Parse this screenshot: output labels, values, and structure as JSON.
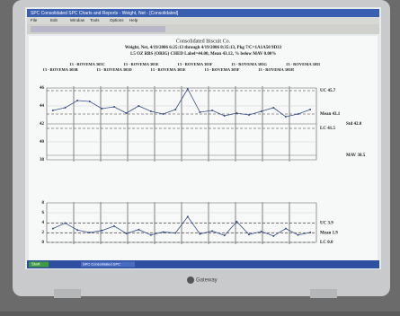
{
  "window": {
    "title": "SPC Consolidated SPC Charts and Reports - Weight, Net - [Consolidated]",
    "menu": [
      "File",
      "Edit",
      "Window",
      "Tools",
      "Options",
      "Help"
    ]
  },
  "report": {
    "company": "Consolidated Biscuit Co.",
    "line1": "Weight, Net, 4/19/2006 6:25:13 through 4/19/2006 8:35:13, Pkg 7/C=1A1A50 9D33",
    "line2": "1.5 OZ RBS (ORIG) CHED  Label=44.00, Mean 43.12, % below MAV 0.00%",
    "groups": [
      "13 - ROVEMA 305B",
      "13 - ROVEMA 305C",
      "13 - ROVEMA 305D",
      "13 - ROVEMA 305E",
      "13 - ROVEMA 305E",
      "13 - ROVEMA 305F",
      "13 - ROVEMA 305F",
      "13 - ROVEMA 305G",
      "13 - ROVEMA 305H",
      "13 - ROVEMA 305I"
    ]
  },
  "chart_data": [
    {
      "type": "line",
      "categories": [
        null,
        null,
        null,
        null,
        null,
        null,
        null,
        null,
        null,
        null,
        null,
        null,
        null,
        null,
        null,
        null,
        null,
        null,
        null,
        null,
        null,
        null
      ],
      "series": [
        {
          "name": "Mean",
          "color": "#3a4f8a",
          "values": [
            43.5,
            43.8,
            44.6,
            44.5,
            43.7,
            43.9,
            43.2,
            44.0,
            43.4,
            43.1,
            43.6,
            45.9,
            43.3,
            43.5,
            42.9,
            43.2,
            43.0,
            43.4,
            43.8,
            42.8,
            43.1,
            43.6
          ]
        }
      ],
      "ylim": [
        38,
        46
      ],
      "yticks": [
        38,
        40,
        42,
        44,
        46
      ],
      "grid": true,
      "limits": [
        {
          "label": "UC 45.7",
          "value": 45.7,
          "kind": "control"
        },
        {
          "label": "Mean 43.1",
          "value": 43.1,
          "kind": "control"
        },
        {
          "label": "LC 41.5",
          "value": 41.5,
          "kind": "control"
        },
        {
          "label": "Std 42.0",
          "value": 42.0,
          "kind": "spec"
        },
        {
          "label": "MAV 38.5",
          "value": 38.5,
          "kind": "spec"
        }
      ]
    },
    {
      "type": "line",
      "categories": [
        null,
        null,
        null,
        null,
        null,
        null,
        null,
        null,
        null,
        null,
        null,
        null,
        null,
        null,
        null,
        null,
        null,
        null,
        null,
        null,
        null,
        null
      ],
      "series": [
        {
          "name": "Range",
          "color": "#3a4f8a",
          "values": [
            2.8,
            3.9,
            2.5,
            2.0,
            2.4,
            3.3,
            1.8,
            2.6,
            1.5,
            2.1,
            1.9,
            5.2,
            1.7,
            2.3,
            1.4,
            4.2,
            1.6,
            2.2,
            1.3,
            2.8,
            1.5,
            2.0
          ]
        }
      ],
      "ylim": [
        0,
        8
      ],
      "yticks": [
        0,
        2,
        4,
        6,
        8
      ],
      "grid": true,
      "limits": [
        {
          "label": "UC 3.9",
          "value": 3.9,
          "kind": "control"
        },
        {
          "label": "Mean 1.9",
          "value": 1.9,
          "kind": "control"
        },
        {
          "label": "LC 0.0",
          "value": 0.0,
          "kind": "control"
        }
      ]
    }
  ],
  "taskbar": {
    "start": "Start",
    "task": "SPC Consolidated SPC"
  },
  "brand": "Gateway"
}
